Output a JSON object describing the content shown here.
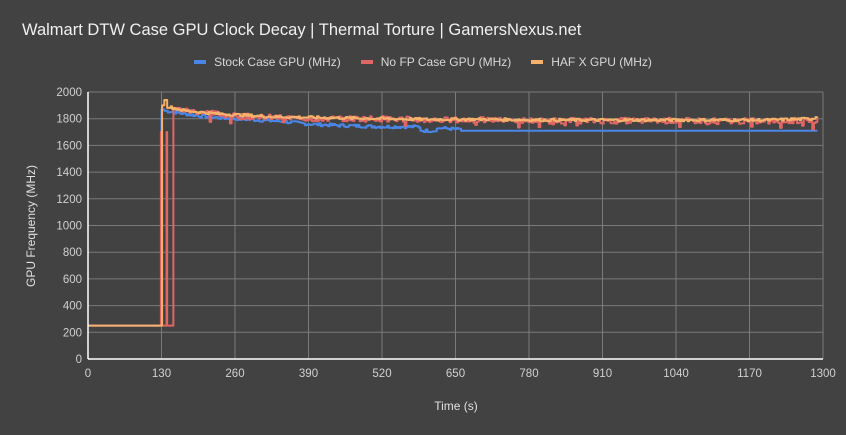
{
  "chart_data": {
    "type": "line",
    "title": "Walmart DTW Case GPU Clock Decay | Thermal Torture | GamersNexus.net",
    "xlabel": "Time (s)",
    "ylabel": "GPU Frequency (MHz)",
    "xlim": [
      0,
      1300
    ],
    "ylim": [
      0,
      2000
    ],
    "x_ticks": [
      0,
      130,
      260,
      390,
      520,
      650,
      780,
      910,
      1040,
      1170,
      1300
    ],
    "y_ticks": [
      0,
      200,
      400,
      600,
      800,
      1000,
      1200,
      1400,
      1600,
      1800,
      2000
    ],
    "grid": true,
    "legend_position": "top",
    "series": [
      {
        "name": "Stock Case GPU (MHz)",
        "color": "#4a86e8",
        "points": [
          [
            0,
            250
          ],
          [
            128,
            250
          ],
          [
            129,
            1700
          ],
          [
            130,
            1870
          ],
          [
            135,
            1860
          ],
          [
            150,
            1850
          ],
          [
            180,
            1830
          ],
          [
            220,
            1810
          ],
          [
            260,
            1800
          ],
          [
            300,
            1790
          ],
          [
            340,
            1780
          ],
          [
            390,
            1760
          ],
          [
            440,
            1750
          ],
          [
            480,
            1745
          ],
          [
            520,
            1740
          ],
          [
            560,
            1740
          ],
          [
            585,
            1740
          ],
          [
            588,
            1710
          ],
          [
            610,
            1710
          ],
          [
            620,
            1730
          ],
          [
            640,
            1725
          ],
          [
            655,
            1720
          ],
          [
            660,
            1710
          ],
          [
            1290,
            1710
          ]
        ]
      },
      {
        "name": "No FP Case GPU (MHz)",
        "color": "#e06666",
        "points": [
          [
            0,
            250
          ],
          [
            128,
            250
          ],
          [
            129,
            1700
          ],
          [
            130,
            250
          ],
          [
            138,
            250
          ],
          [
            139,
            1700
          ],
          [
            140,
            250
          ],
          [
            150,
            250
          ],
          [
            151,
            1880
          ],
          [
            170,
            1860
          ],
          [
            200,
            1850
          ],
          [
            260,
            1820
          ],
          [
            320,
            1810
          ],
          [
            390,
            1800
          ],
          [
            450,
            1800
          ],
          [
            520,
            1800
          ],
          [
            600,
            1790
          ],
          [
            700,
            1790
          ],
          [
            800,
            1785
          ],
          [
            900,
            1785
          ],
          [
            1000,
            1785
          ],
          [
            1100,
            1785
          ],
          [
            1200,
            1780
          ],
          [
            1290,
            1790
          ]
        ]
      },
      {
        "name": "HAF X GPU (MHz)",
        "color": "#f6b26b",
        "points": [
          [
            0,
            250
          ],
          [
            130,
            250
          ],
          [
            131,
            1900
          ],
          [
            135,
            1940
          ],
          [
            140,
            1890
          ],
          [
            170,
            1860
          ],
          [
            220,
            1840
          ],
          [
            260,
            1830
          ],
          [
            320,
            1815
          ],
          [
            390,
            1810
          ],
          [
            450,
            1805
          ],
          [
            520,
            1800
          ],
          [
            600,
            1795
          ],
          [
            700,
            1795
          ],
          [
            800,
            1790
          ],
          [
            900,
            1790
          ],
          [
            1000,
            1790
          ],
          [
            1100,
            1790
          ],
          [
            1200,
            1790
          ],
          [
            1280,
            1800
          ],
          [
            1290,
            1820
          ]
        ]
      }
    ]
  },
  "legend": [
    {
      "label": "Stock Case GPU (MHz)",
      "color": "#4a86e8"
    },
    {
      "label": "No FP Case GPU (MHz)",
      "color": "#e06666"
    },
    {
      "label": "HAF X GPU (MHz)",
      "color": "#f6b26b"
    }
  ]
}
